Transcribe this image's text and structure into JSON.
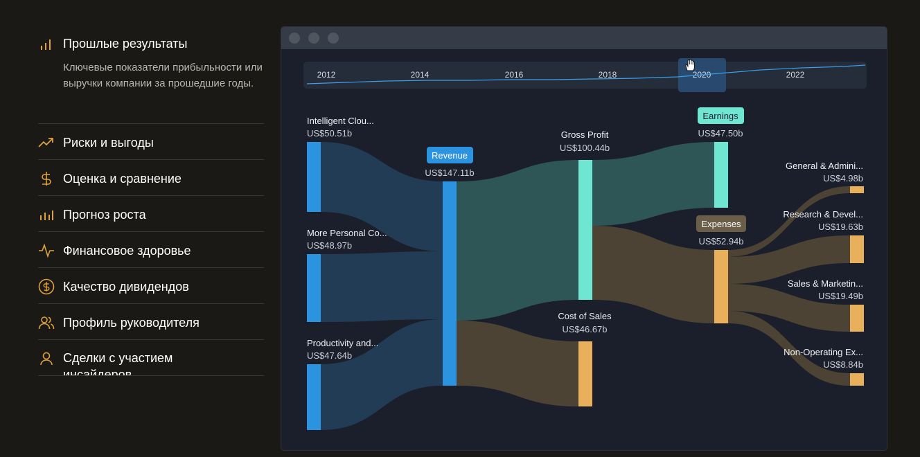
{
  "menu": {
    "items": [
      {
        "label": "Прошлые результаты",
        "icon": "bar-chart-icon",
        "description": "Ключевые показатели прибыльности или выручки компании за прошедшие годы."
      },
      {
        "label": "Риски и выгоды",
        "icon": "trend-up-icon"
      },
      {
        "label": "Оценка и сравнение",
        "icon": "dollar-icon"
      },
      {
        "label": "Прогноз роста",
        "icon": "growth-bars-icon"
      },
      {
        "label": "Финансовое здоровье",
        "icon": "pulse-icon"
      },
      {
        "label": "Качество дивидендов",
        "icon": "dollar-circle-icon"
      },
      {
        "label": "Профиль руководителя",
        "icon": "people-icon"
      },
      {
        "label": "Сделки с участием инсайдеров",
        "icon": "person-icon"
      }
    ]
  },
  "timeline": {
    "years": [
      "2012",
      "2014",
      "2016",
      "2018",
      "2020",
      "2022"
    ],
    "selected": "2020"
  },
  "colors": {
    "segment": "#2b93e0",
    "revenue": "#2b93e0",
    "profit": "#6ee6d2",
    "cost": "#e8b05a",
    "flow_blue": "#233c55",
    "flow_teal": "#2e5656",
    "flow_brown": "#4c4334"
  },
  "sankey": {
    "segments": [
      {
        "name": "Intelligent Clou...",
        "value": "US$50.51b"
      },
      {
        "name": "More Personal Co...",
        "value": "US$48.97b"
      },
      {
        "name": "Productivity and...",
        "value": "US$47.64b"
      }
    ],
    "revenue": {
      "name": "Revenue",
      "value": "US$147.11b"
    },
    "gross_profit": {
      "name": "Gross Profit",
      "value": "US$100.44b"
    },
    "cost_of_sales": {
      "name": "Cost of Sales",
      "value": "US$46.67b"
    },
    "earnings": {
      "name": "Earnings",
      "value": "US$47.50b"
    },
    "expenses": {
      "name": "Expenses",
      "value": "US$52.94b"
    },
    "expense_items": [
      {
        "name": "General & Admini...",
        "value": "US$4.98b"
      },
      {
        "name": "Research & Devel...",
        "value": "US$19.63b"
      },
      {
        "name": "Sales & Marketin...",
        "value": "US$19.49b"
      },
      {
        "name": "Non-Operating Ex...",
        "value": "US$8.84b"
      }
    ]
  }
}
